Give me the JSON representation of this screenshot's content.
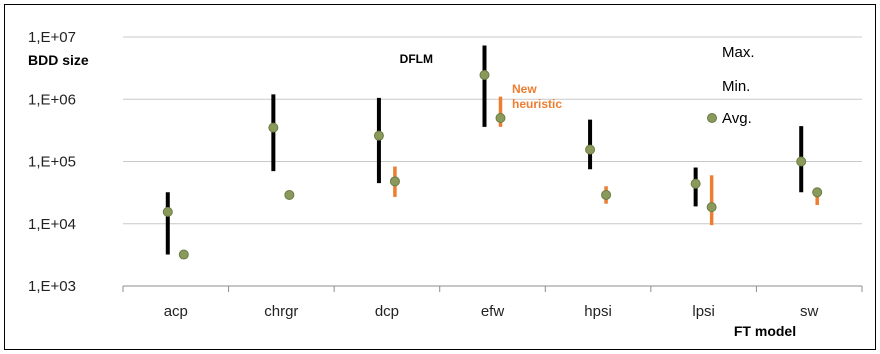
{
  "chart_data": {
    "type": "scatter",
    "title": "",
    "xlabel": "FT model",
    "ylabel": "BDD size",
    "y_scale": "log",
    "ylim": [
      1000,
      10000000
    ],
    "y_ticks": [
      "1,E+03",
      "1,E+04",
      "1,E+05",
      "1,E+06",
      "1,E+07"
    ],
    "grid": true,
    "legend_position": "right",
    "categories": [
      "acp",
      "chrgr",
      "dcp",
      "efw",
      "hpsi",
      "lpsi",
      "sw"
    ],
    "series": [
      {
        "name": "DFLM",
        "color": "#000000",
        "min": [
          3200,
          70000,
          45000,
          360000,
          75000,
          19000,
          32000
        ],
        "max": [
          32000,
          1200000,
          1050000,
          7300000,
          470000,
          80000,
          370000
        ],
        "avg": [
          15500,
          350000,
          260000,
          2450000,
          155000,
          44000,
          100000
        ]
      },
      {
        "name": "New heuristic",
        "color": "#ED7D31",
        "min": [
          3000,
          27000,
          27000,
          360000,
          21000,
          9500,
          20000
        ],
        "max": [
          3400,
          32000,
          83000,
          1100000,
          40000,
          60000,
          38000
        ],
        "avg": [
          3200,
          29000,
          48000,
          500000,
          29000,
          18500,
          32000
        ]
      }
    ],
    "annotations": [
      "DFLM",
      "New heuristic"
    ],
    "legend": {
      "max_label": "Max.",
      "min_label": "Min.",
      "avg_label": "Avg."
    },
    "marker_color": "#8A9A5B",
    "marker_stroke": "#6B7B45"
  }
}
